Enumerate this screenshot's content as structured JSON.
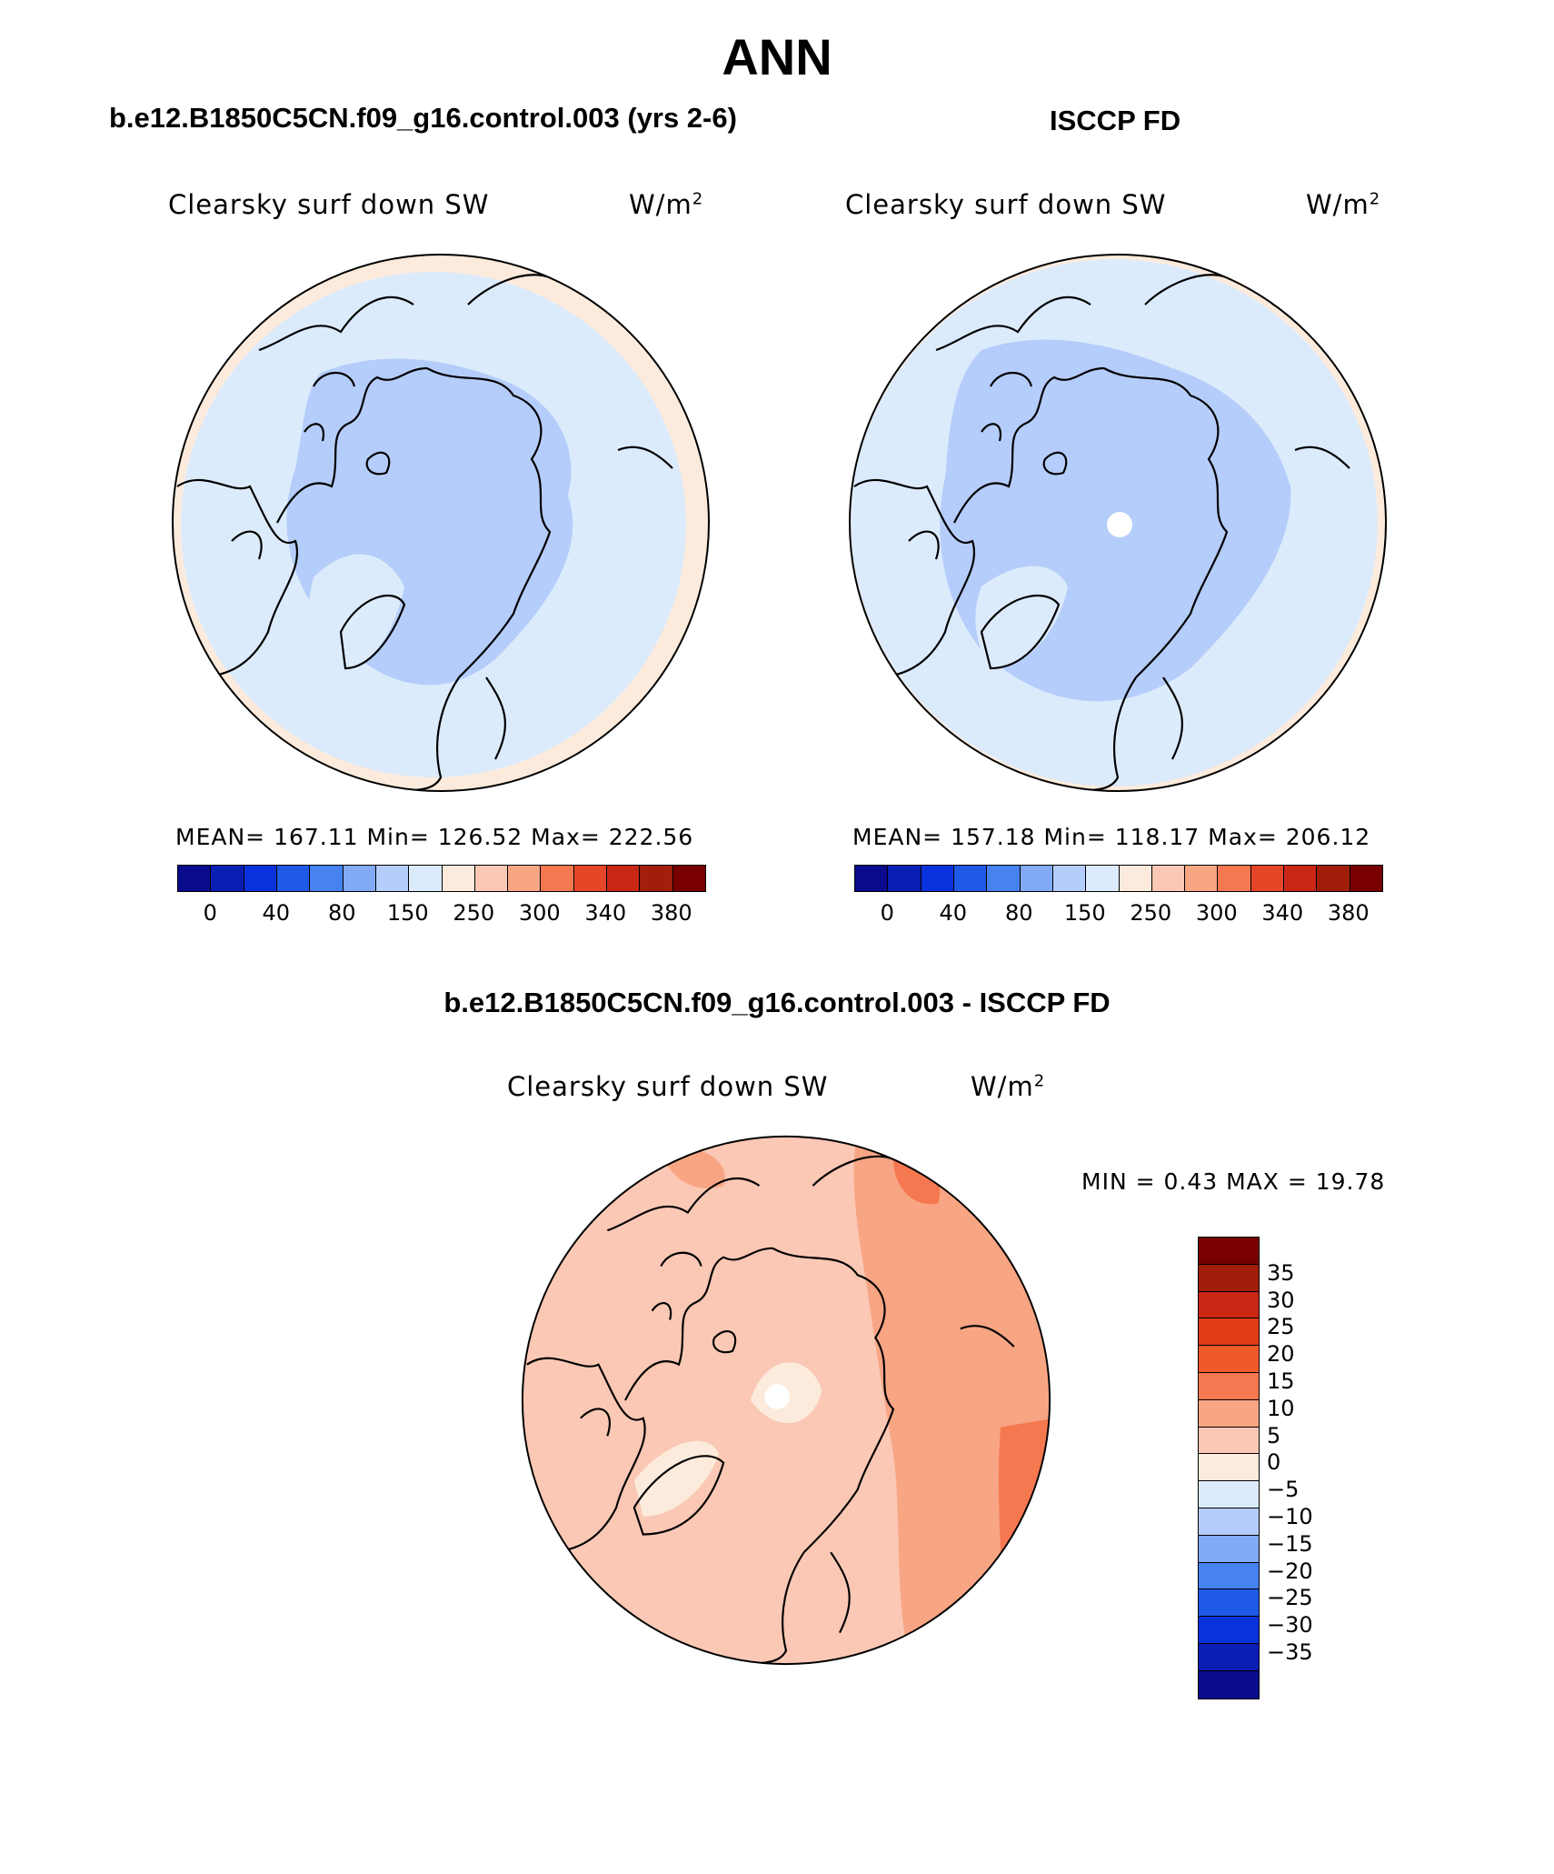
{
  "title": "ANN",
  "colors": {
    "abs_scale": [
      "#0a0a8c",
      "#0a1eb4",
      "#0a32dc",
      "#1e5ae6",
      "#4682f0",
      "#82aaf5",
      "#b4cdfa",
      "#dcebfc",
      "#fcebdc",
      "#fac8b4",
      "#f8a584",
      "#f57850",
      "#e64628",
      "#c82814",
      "#a01e0a",
      "#780000"
    ],
    "diff_scale": [
      "#780000",
      "#a01e0a",
      "#c82814",
      "#e03c14",
      "#f05a28",
      "#f57850",
      "#f8a584",
      "#fac8b4",
      "#fcebdc",
      "#dcebfc",
      "#b4cdfa",
      "#82aaf5",
      "#4682f0",
      "#1e5ae6",
      "#0a32dc",
      "#0a1eb4",
      "#0a0a8c"
    ]
  },
  "panels": [
    {
      "title": "b.e12.B1850C5CN.f09_g16.control.003 (yrs 2-6)",
      "variable": "Clearsky surf down SW",
      "units": "W/m",
      "units_sup": "2",
      "stats": "MEAN= 167.11   Min= 126.52   Max= 222.56",
      "colorbar_ticks": [
        "0",
        "40",
        "80",
        "150",
        "250",
        "300",
        "340",
        "380"
      ]
    },
    {
      "title": "ISCCP FD",
      "variable": "Clearsky surf down SW",
      "units": "W/m",
      "units_sup": "2",
      "stats": "MEAN= 157.18   Min= 118.17   Max= 206.12",
      "colorbar_ticks": [
        "0",
        "40",
        "80",
        "150",
        "250",
        "300",
        "340",
        "380"
      ]
    },
    {
      "title": "b.e12.B1850C5CN.f09_g16.control.003 - ISCCP FD",
      "variable": "Clearsky surf down SW",
      "units": "W/m",
      "units_sup": "2",
      "stats": "MIN =     0.43  MAX =   19.78",
      "colorbar_ticks": [
        "35",
        "30",
        "25",
        "20",
        "15",
        "10",
        "5",
        "0",
        "−5",
        "−10",
        "−15",
        "−20",
        "−25",
        "−30",
        "−35"
      ]
    }
  ]
}
